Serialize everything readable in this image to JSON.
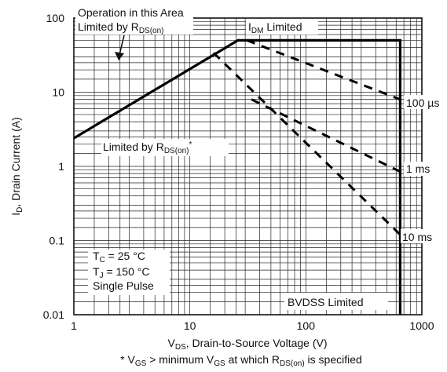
{
  "chart_data": {
    "type": "line",
    "x_scale": "log",
    "y_scale": "log",
    "xlim": [
      1,
      1000
    ],
    "ylim": [
      0.01,
      100
    ],
    "x_ticks": [
      "1",
      "10",
      "100",
      "1000"
    ],
    "y_ticks": [
      "100",
      "10",
      "1",
      "0.1",
      "0.01"
    ],
    "xlabel": {
      "pre": "V",
      "sub": "DS",
      "post": ", Drain-to-Source Voltage (V)"
    },
    "ylabel": {
      "pre": "I",
      "sub": "D",
      "post": ", Drain Current (A)"
    },
    "footnote": {
      "p1": "* V",
      "s1": "GS",
      "p2": " > minimum V",
      "s2": "GS",
      "p3": " at which R",
      "s3": "DS(on)",
      "p4": " is specified"
    },
    "series": [
      {
        "style": "solid",
        "points": [
          [
            1,
            2.4
          ],
          [
            26,
            50
          ],
          [
            650,
            50
          ],
          [
            650,
            0.01
          ]
        ]
      },
      {
        "name": "100 µs",
        "style": "dashed",
        "points": [
          [
            31,
            50
          ],
          [
            650,
            8
          ]
        ]
      },
      {
        "name": "1 ms",
        "style": "dashed",
        "points": [
          [
            34,
            8
          ],
          [
            650,
            0.85
          ]
        ]
      },
      {
        "name": "10 ms",
        "style": "dashed",
        "points": [
          [
            16,
            34
          ],
          [
            650,
            0.12
          ]
        ]
      }
    ],
    "annotations": {
      "operation_line1": "Operation in this Area",
      "operation_line2": {
        "pre": "Limited by R",
        "sub": "DS(on)"
      },
      "idm": {
        "pre": "I",
        "sub": "DM",
        "post": " Limited"
      },
      "rds": {
        "pre": "Limited by R",
        "sub": "DS(on)",
        "post": "*"
      },
      "conditions": [
        {
          "pre": "T",
          "sub": "C",
          "post": " = 25 °C"
        },
        {
          "pre": "T",
          "sub": "J",
          "post": " = 150 °C"
        },
        {
          "pre": "Single Pulse",
          "sub": "",
          "post": ""
        }
      ],
      "bvdss": "BVDSS Limited",
      "label_100us": "100 µs",
      "label_1ms": "1 ms",
      "label_10ms": "10 ms"
    }
  }
}
